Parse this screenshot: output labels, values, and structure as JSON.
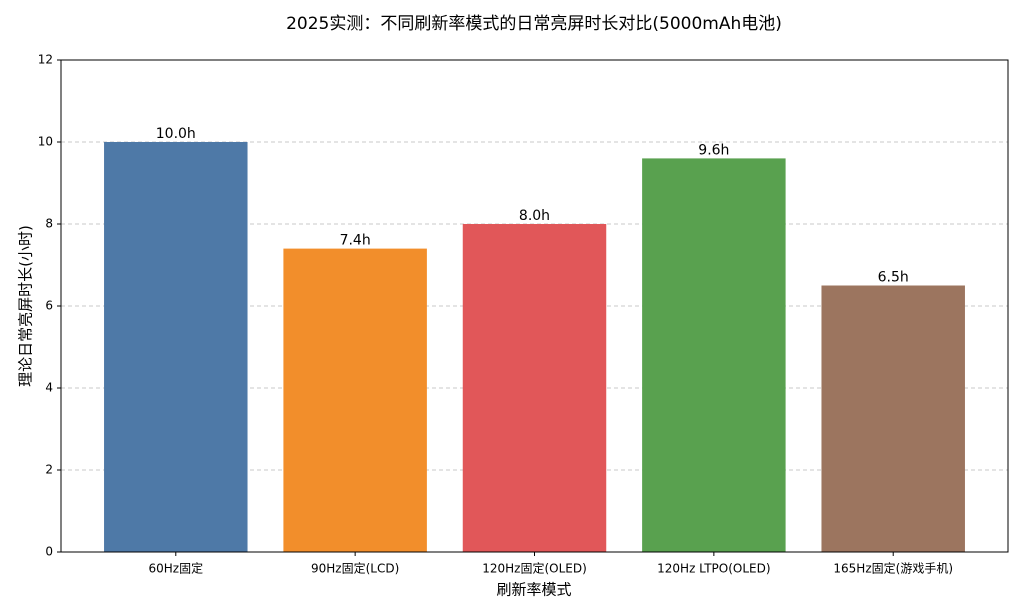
{
  "chart_data": {
    "type": "bar",
    "title": "2025实测：不同刷新率模式的日常亮屏时长对比(5000mAh电池)",
    "xlabel": "刷新率模式",
    "ylabel": "理论日常亮屏时长(小时)",
    "categories": [
      "60Hz固定",
      "90Hz固定(LCD)",
      "120Hz固定(OLED)",
      "120Hz LTPO(OLED)",
      "165Hz固定(游戏手机)"
    ],
    "values": [
      10.0,
      7.4,
      8.0,
      9.6,
      6.5
    ],
    "value_labels": [
      "10.0h",
      "7.4h",
      "8.0h",
      "9.6h",
      "6.5h"
    ],
    "colors": [
      "#4e79a7",
      "#f28e2b",
      "#e15759",
      "#59a14f",
      "#9c755f"
    ],
    "ylim": [
      0,
      12
    ],
    "yticks": [
      0,
      2,
      4,
      6,
      8,
      10,
      12
    ],
    "grid": true
  }
}
